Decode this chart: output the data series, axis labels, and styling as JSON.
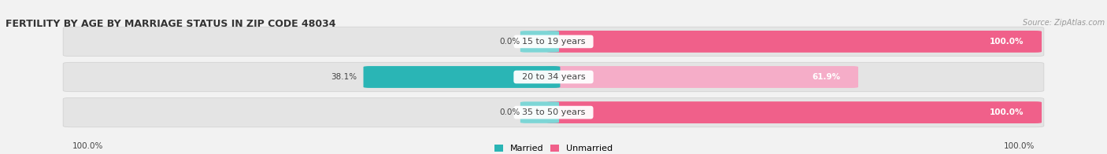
{
  "title": "FERTILITY BY AGE BY MARRIAGE STATUS IN ZIP CODE 48034",
  "source": "Source: ZipAtlas.com",
  "categories": [
    "15 to 19 years",
    "20 to 34 years",
    "35 to 50 years"
  ],
  "married": [
    0.0,
    38.1,
    0.0
  ],
  "unmarried": [
    100.0,
    61.9,
    100.0
  ],
  "married_color_full": "#2ab5b5",
  "married_color_light": "#7dd6d6",
  "unmarried_color_full": "#f0608a",
  "unmarried_color_light": "#f5adc8",
  "bg_color": "#f2f2f2",
  "bar_bg_color": "#e4e4e4",
  "bar_border_color": "#d0d0d0",
  "left_axis_label": "100.0%",
  "right_axis_label": "100.0%",
  "title_color": "#333333",
  "source_color": "#999999",
  "label_color": "#444444",
  "value_color": "#444444"
}
